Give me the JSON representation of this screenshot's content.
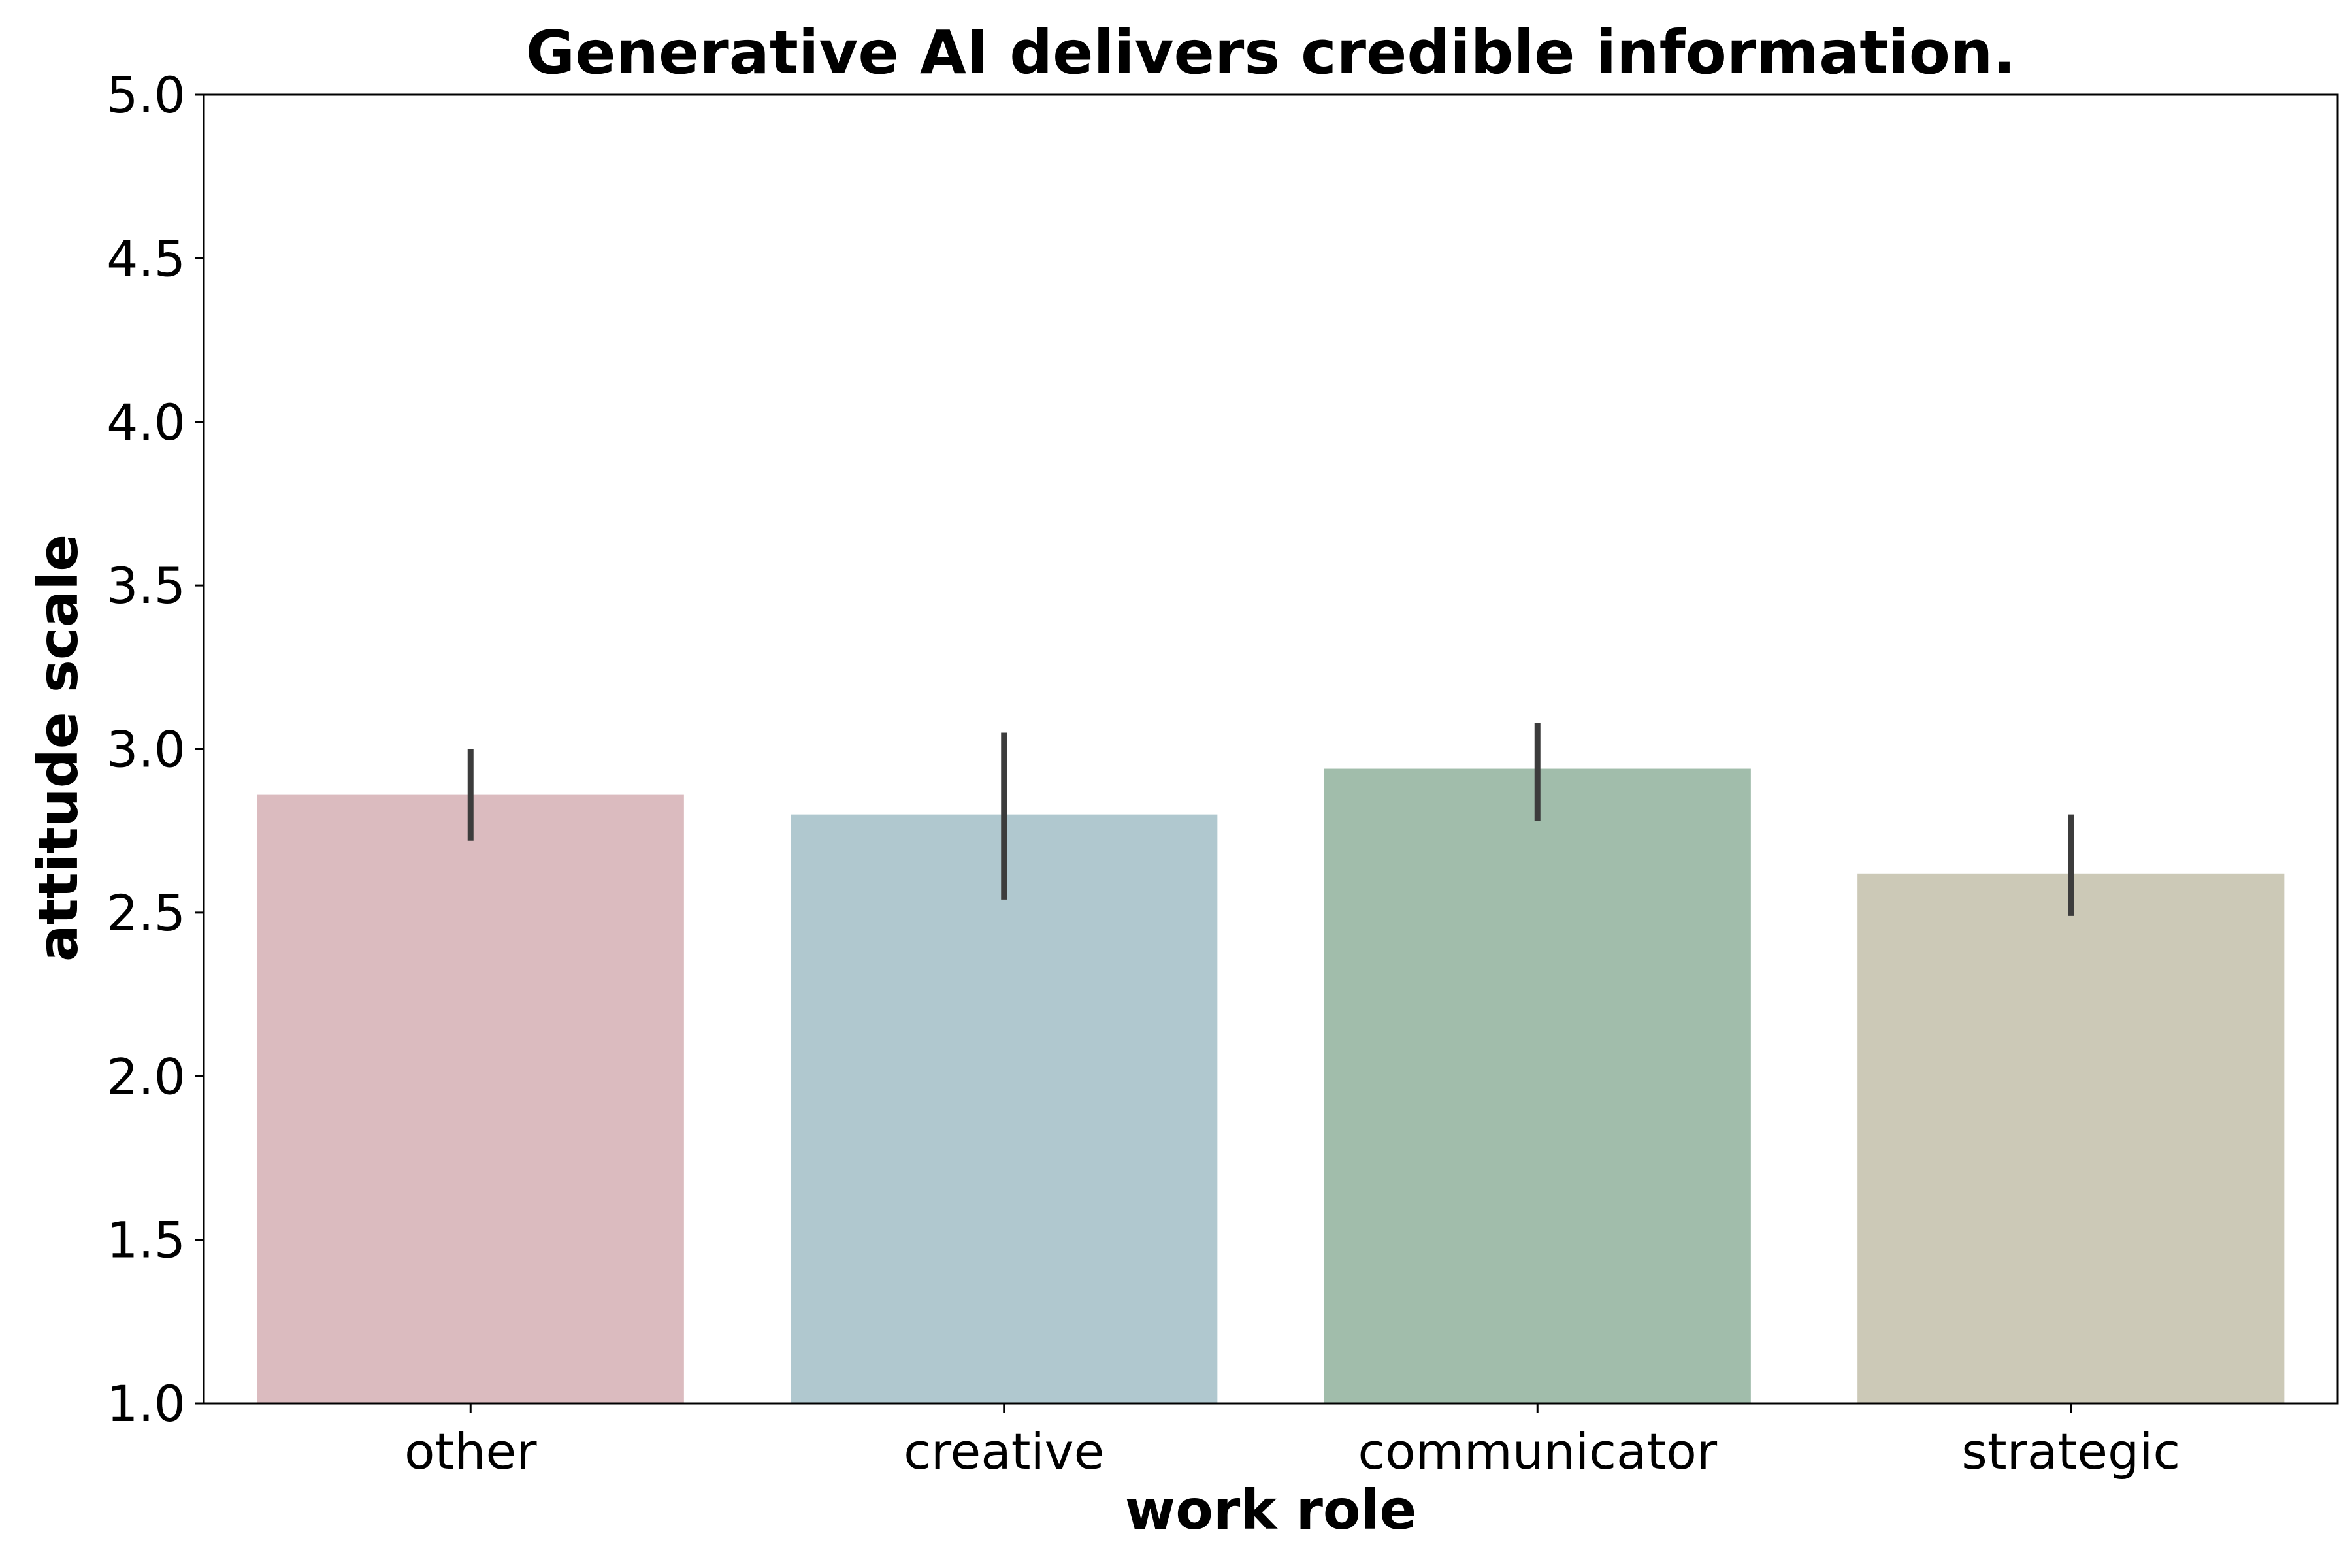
{
  "chart_data": {
    "type": "bar",
    "title": "Generative AI delivers credible information.",
    "xlabel": "work role",
    "ylabel": "attitude scale",
    "categories": [
      "other",
      "creative",
      "communicator",
      "strategic"
    ],
    "values": [
      2.86,
      2.8,
      2.94,
      2.62
    ],
    "error_bars": [
      {
        "low": 2.72,
        "high": 3.0
      },
      {
        "low": 2.54,
        "high": 3.05
      },
      {
        "low": 2.78,
        "high": 3.08
      },
      {
        "low": 2.49,
        "high": 2.8
      }
    ],
    "ylim": [
      1.0,
      5.0
    ],
    "yticks": [
      "1.0",
      "1.5",
      "2.0",
      "2.5",
      "3.0",
      "3.5",
      "4.0",
      "4.5",
      "5.0"
    ],
    "bar_colors": [
      "#dbbbbf",
      "#b0c8cf",
      "#a1bdab",
      "#ccc9b7"
    ],
    "error_bar_color": "#3c3c3c",
    "grid": false,
    "legend": "none"
  }
}
